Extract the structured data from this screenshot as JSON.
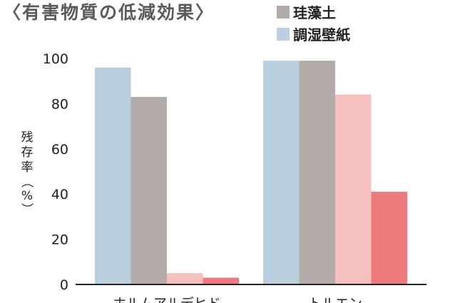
{
  "chart_data": {
    "type": "bar",
    "title": "〈有害物質の低減効果〉",
    "ylabel_lines": [
      "残",
      "存",
      "率",
      "（",
      "%",
      "）"
    ],
    "ylim": [
      0,
      100
    ],
    "yticks": [
      0,
      20,
      40,
      60,
      80,
      100
    ],
    "categories": [
      "ホルムアルデヒド",
      "トルエン"
    ],
    "series": [
      {
        "name": "調湿壁紙",
        "color": "#b9cfdd",
        "values": [
          96,
          99
        ]
      },
      {
        "name": "珪藻土",
        "color": "#b3aca8",
        "values": [
          83,
          99
        ]
      },
      {
        "name": "",
        "color": "#f6c0bf",
        "values": [
          5,
          84
        ]
      },
      {
        "name": "",
        "color": "#ee7a7e",
        "values": [
          3,
          41
        ]
      }
    ],
    "legend": [
      {
        "label": "珪藻土",
        "color": "#b3aca8"
      },
      {
        "label": "調湿壁紙",
        "color": "#b9cfdd"
      }
    ],
    "legend_position": "top-right",
    "grid": false
  }
}
